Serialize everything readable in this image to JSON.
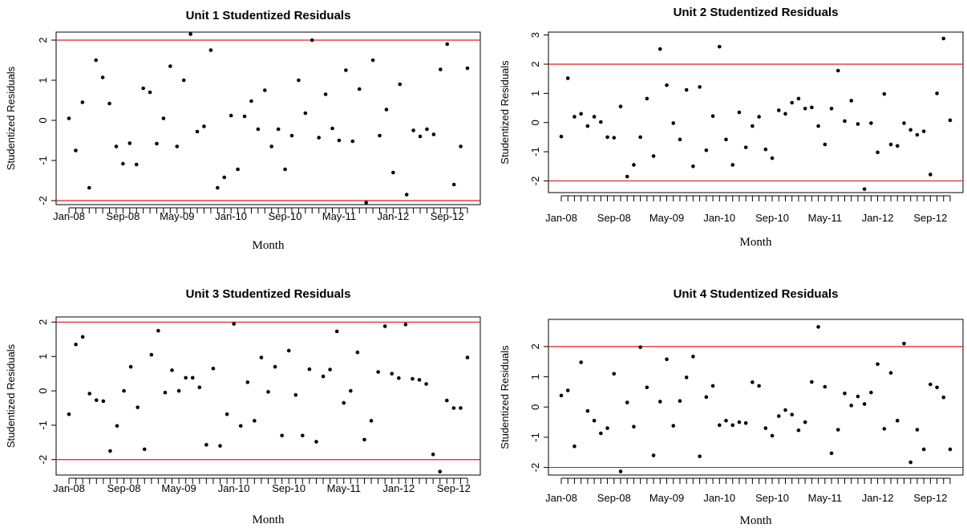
{
  "chart_data": [
    {
      "type": "scatter",
      "title": "Unit 1 Studentized Residuals",
      "xlabel": "Month",
      "ylabel": "Studentized Residuals",
      "x_tick_labels": [
        "Jan-08",
        "Sep-08",
        "May-09",
        "Jan-10",
        "Sep-10",
        "May-11",
        "Jan-12",
        "Sep-12"
      ],
      "y_ticks": [
        -2,
        -1,
        0,
        1,
        2
      ],
      "ylim": [
        -2.1,
        2.2
      ],
      "reference_lines": [
        -2,
        2
      ],
      "reference_line_color": "#e31a1c",
      "point_color": "#000000",
      "y": [
        0.05,
        -0.75,
        0.45,
        -1.68,
        1.5,
        1.07,
        0.42,
        -0.65,
        -1.08,
        -0.57,
        -1.1,
        0.8,
        0.7,
        -0.58,
        0.05,
        1.35,
        -0.65,
        1.0,
        2.15,
        -0.28,
        -0.15,
        1.75,
        -1.68,
        -1.42,
        0.12,
        -1.22,
        0.1,
        0.48,
        -0.22,
        0.75,
        -0.65,
        -0.22,
        -1.22,
        -0.38,
        1.0,
        0.18,
        2.0,
        -0.43,
        0.65,
        -0.2,
        -0.5,
        1.25,
        -0.52,
        0.78,
        -2.05,
        1.5,
        -0.38,
        0.27,
        -1.3,
        0.9,
        -1.85,
        -0.25,
        -0.4,
        -0.22,
        -0.35,
        1.27,
        1.9,
        -1.6,
        -0.65,
        1.3
      ]
    },
    {
      "type": "scatter",
      "title": "Unit 2 Studentized Residuals",
      "xlabel": "Month",
      "ylabel": "Studentized Residuals",
      "x_tick_labels": [
        "Jan-08",
        "Sep-08",
        "May-09",
        "Jan-10",
        "Sep-10",
        "May-11",
        "Jan-12",
        "Sep-12"
      ],
      "y_ticks": [
        -2,
        -1,
        0,
        1,
        2,
        3
      ],
      "ylim": [
        -2.4,
        3.1
      ],
      "reference_lines": [
        -2,
        2
      ],
      "reference_line_color": "#e31a1c",
      "point_color": "#000000",
      "y": [
        -0.48,
        1.52,
        0.2,
        0.3,
        -0.12,
        0.2,
        0.02,
        -0.5,
        -0.52,
        0.55,
        -1.85,
        -1.45,
        -0.5,
        0.82,
        -1.15,
        2.52,
        1.28,
        -0.02,
        -0.58,
        1.12,
        -1.5,
        1.22,
        -0.95,
        0.22,
        2.6,
        -0.58,
        -1.45,
        0.35,
        -0.85,
        -0.12,
        0.2,
        -0.92,
        -1.22,
        0.42,
        0.3,
        0.68,
        0.82,
        0.48,
        0.52,
        -0.12,
        -0.75,
        0.48,
        1.78,
        0.05,
        0.75,
        -0.05,
        -2.28,
        -0.02,
        -1.02,
        0.98,
        -0.75,
        -0.8,
        -0.02,
        -0.25,
        -0.42,
        -0.3,
        -1.78,
        1.0,
        2.88,
        0.08
      ]
    },
    {
      "type": "scatter",
      "title": "Unit 3 Studentized Residuals",
      "xlabel": "Month",
      "ylabel": "Studentized Residuals",
      "x_tick_labels": [
        "Jan-08",
        "Sep-08",
        "May-09",
        "Jan-10",
        "Sep-10",
        "May-11",
        "Jan-12",
        "Sep-12"
      ],
      "y_ticks": [
        -2,
        -1,
        0,
        1,
        2
      ],
      "ylim": [
        -2.45,
        2.15
      ],
      "reference_lines": [
        -2,
        2
      ],
      "reference_line_color": "#e31a1c",
      "point_color": "#000000",
      "y": [
        -0.68,
        1.35,
        1.57,
        -0.08,
        -0.27,
        -0.3,
        -1.75,
        -1.02,
        0.0,
        0.7,
        -0.48,
        -1.7,
        1.05,
        1.75,
        -0.05,
        0.6,
        0.0,
        0.38,
        0.38,
        0.1,
        -1.57,
        0.65,
        -1.6,
        -0.68,
        1.95,
        -1.02,
        0.25,
        -0.87,
        0.97,
        -0.03,
        0.7,
        -1.3,
        1.17,
        -0.12,
        -1.3,
        0.63,
        -1.48,
        0.42,
        0.62,
        1.73,
        -0.35,
        0.0,
        1.12,
        -1.42,
        -0.87,
        0.55,
        1.88,
        0.5,
        0.37,
        1.93,
        0.35,
        0.32,
        0.2,
        -1.85,
        -2.35,
        -0.28,
        -0.5,
        -0.5,
        0.97
      ]
    },
    {
      "type": "scatter",
      "title": "Unit 4 Studentized Residuals",
      "xlabel": "Month",
      "ylabel": "Studentized Residuals",
      "x_tick_labels": [
        "Jan-08",
        "Sep-08",
        "May-09",
        "Jan-10",
        "Sep-10",
        "May-11",
        "Jan-12",
        "Sep-12"
      ],
      "y_ticks": [
        -2,
        -1,
        0,
        1,
        2
      ],
      "ylim": [
        -2.25,
        2.9
      ],
      "reference_lines": [
        -2,
        2
      ],
      "reference_line_color": "#e31a1c",
      "point_color": "#000000",
      "y": [
        0.38,
        0.55,
        -1.3,
        1.48,
        -0.13,
        -0.45,
        -0.87,
        -0.7,
        1.1,
        -2.13,
        0.15,
        -0.65,
        1.98,
        0.65,
        -1.6,
        0.18,
        1.58,
        -0.62,
        0.2,
        0.98,
        1.67,
        -1.63,
        0.33,
        0.7,
        -0.6,
        -0.45,
        -0.6,
        -0.5,
        -0.53,
        0.82,
        0.7,
        -0.7,
        -0.95,
        -0.3,
        -0.1,
        -0.25,
        -0.77,
        -0.5,
        0.83,
        2.65,
        0.67,
        -1.53,
        -0.75,
        0.45,
        0.05,
        0.35,
        0.1,
        0.48,
        1.42,
        -0.72,
        1.13,
        -0.45,
        2.1,
        -1.83,
        -0.75,
        -1.4,
        0.75,
        0.65,
        0.32,
        -1.4
      ]
    }
  ]
}
